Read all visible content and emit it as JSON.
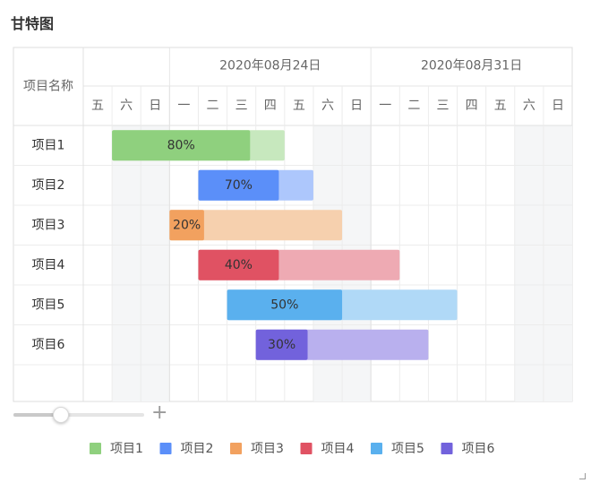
{
  "page": {
    "title": "甘特图"
  },
  "chart_data": {
    "type": "gantt",
    "task_column_header": "项目名称",
    "week_labels": [
      {
        "label": "2020年08月24日",
        "start_index": 3,
        "span": 7
      },
      {
        "label": "2020年08月31日",
        "start_index": 10,
        "span": 7
      }
    ],
    "day_labels": [
      "五",
      "六",
      "日",
      "一",
      "二",
      "三",
      "四",
      "五",
      "六",
      "日",
      "一",
      "二",
      "三",
      "四",
      "五",
      "六",
      "日"
    ],
    "weekend_indices": [
      1,
      2,
      8,
      9,
      15,
      16
    ],
    "tasks": [
      {
        "name": "项目1",
        "start_day": 1,
        "duration_days": 6,
        "progress": 0.8,
        "progress_label": "80%",
        "color": "#8fd07e",
        "light_color": "#c7e8be"
      },
      {
        "name": "项目2",
        "start_day": 4,
        "duration_days": 4,
        "progress": 0.7,
        "progress_label": "70%",
        "color": "#5b8ff9",
        "light_color": "#adc7fc"
      },
      {
        "name": "项目3",
        "start_day": 3,
        "duration_days": 6,
        "progress": 0.2,
        "progress_label": "20%",
        "color": "#f2a15f",
        "light_color": "#f6d0ae"
      },
      {
        "name": "项目4",
        "start_day": 4,
        "duration_days": 7,
        "progress": 0.4,
        "progress_label": "40%",
        "color": "#e05263",
        "light_color": "#eeaab3"
      },
      {
        "name": "项目5",
        "start_day": 5,
        "duration_days": 8,
        "progress": 0.5,
        "progress_label": "50%",
        "color": "#5ab0ee",
        "light_color": "#b0d9f7"
      },
      {
        "name": "项目6",
        "start_day": 6,
        "duration_days": 6,
        "progress": 0.3,
        "progress_label": "30%",
        "color": "#7262dc",
        "light_color": "#b9b0ee"
      }
    ],
    "legend": [
      {
        "label": "项目1",
        "color": "#8fd07e"
      },
      {
        "label": "项目2",
        "color": "#5b8ff9"
      },
      {
        "label": "项目3",
        "color": "#f2a15f"
      },
      {
        "label": "项目4",
        "color": "#e05263"
      },
      {
        "label": "项目5",
        "color": "#5ab0ee"
      },
      {
        "label": "项目6",
        "color": "#7262dc"
      }
    ],
    "legend_position": "bottom"
  }
}
